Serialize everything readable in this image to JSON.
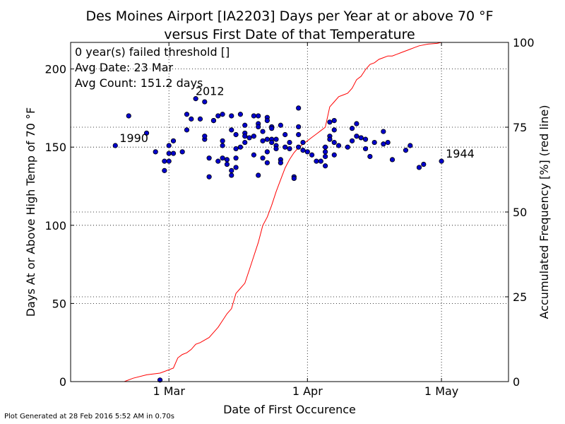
{
  "chart_data": {
    "type": "scatter",
    "title_line1": "Des Moines Airport [IA2203] Days per Year at or above 70 °F",
    "title_line2": "versus First Date of that Temperature",
    "xlabel": "Date of First Occurence",
    "ylabel": "Days At or Above High Temp of 70 °F",
    "y2label": "Accumulated Frequency [%] (red line)",
    "x_axis": {
      "unit": "day of year",
      "range": [
        38,
        136
      ],
      "ticks": [
        {
          "value": 60,
          "label": "1 Mar"
        },
        {
          "value": 91,
          "label": "1 Apr"
        },
        {
          "value": 121,
          "label": "1 May"
        }
      ]
    },
    "ylim": [
      0,
      217
    ],
    "yticks": [
      0,
      50,
      100,
      150,
      200
    ],
    "y2lim": [
      0,
      100
    ],
    "y2ticks": [
      0,
      25,
      50,
      75,
      100
    ],
    "grid": true,
    "annotation_box": [
      "0 year(s) failed threshold []",
      "Avg Date: 23 Mar",
      "Avg Count: 151.2 days"
    ],
    "year_labels": [
      {
        "label": "1990",
        "x": 48,
        "y": 151
      },
      {
        "label": "2012",
        "x": 65,
        "y": 181
      },
      {
        "label": "1944",
        "x": 121,
        "y": 141
      }
    ],
    "series": [
      {
        "kind": "points",
        "color": "#0000cc",
        "points": [
          [
            48,
            151
          ],
          [
            51,
            170
          ],
          [
            55,
            159
          ],
          [
            57,
            147
          ],
          [
            58,
            1
          ],
          [
            59,
            141
          ],
          [
            59,
            135
          ],
          [
            60,
            141
          ],
          [
            60,
            151
          ],
          [
            60,
            146
          ],
          [
            61,
            146
          ],
          [
            61,
            154
          ],
          [
            63,
            147
          ],
          [
            64,
            171
          ],
          [
            64,
            161
          ],
          [
            65,
            168
          ],
          [
            66,
            181
          ],
          [
            67,
            168
          ],
          [
            68,
            155
          ],
          [
            68,
            179
          ],
          [
            68,
            157
          ],
          [
            69,
            143
          ],
          [
            69,
            131
          ],
          [
            70,
            167
          ],
          [
            70,
            167
          ],
          [
            71,
            170
          ],
          [
            72,
            171
          ],
          [
            72,
            154
          ],
          [
            72,
            151
          ],
          [
            72,
            143
          ],
          [
            71,
            141
          ],
          [
            73,
            142
          ],
          [
            73,
            139
          ],
          [
            74,
            170
          ],
          [
            74,
            161
          ],
          [
            74,
            135
          ],
          [
            74,
            132
          ],
          [
            75,
            158
          ],
          [
            75,
            149
          ],
          [
            75,
            143
          ],
          [
            75,
            137
          ],
          [
            76,
            171
          ],
          [
            76,
            150
          ],
          [
            77,
            164
          ],
          [
            77,
            159
          ],
          [
            77,
            157
          ],
          [
            77,
            153
          ],
          [
            78,
            156
          ],
          [
            79,
            170
          ],
          [
            79,
            145
          ],
          [
            79,
            157
          ],
          [
            80,
            170
          ],
          [
            80,
            165
          ],
          [
            80,
            163
          ],
          [
            80,
            132
          ],
          [
            81,
            160
          ],
          [
            81,
            154
          ],
          [
            81,
            143
          ],
          [
            82,
            169
          ],
          [
            82,
            167
          ],
          [
            82,
            155
          ],
          [
            82,
            147
          ],
          [
            82,
            140
          ],
          [
            83,
            163
          ],
          [
            83,
            162
          ],
          [
            83,
            155
          ],
          [
            83,
            153
          ],
          [
            84,
            155
          ],
          [
            84,
            151
          ],
          [
            84,
            149
          ],
          [
            85,
            142
          ],
          [
            85,
            140
          ],
          [
            85,
            164
          ],
          [
            86,
            158
          ],
          [
            86,
            150
          ],
          [
            87,
            153
          ],
          [
            87,
            149
          ],
          [
            88,
            131
          ],
          [
            88,
            130
          ],
          [
            89,
            175
          ],
          [
            89,
            163
          ],
          [
            89,
            158
          ],
          [
            89,
            150
          ],
          [
            90,
            148
          ],
          [
            90,
            153
          ],
          [
            91,
            147
          ],
          [
            92,
            145
          ],
          [
            93,
            141
          ],
          [
            94,
            141
          ],
          [
            95,
            150
          ],
          [
            95,
            147
          ],
          [
            95,
            144
          ],
          [
            95,
            138
          ],
          [
            96,
            166
          ],
          [
            96,
            157
          ],
          [
            96,
            155
          ],
          [
            97,
            167
          ],
          [
            97,
            161
          ],
          [
            97,
            153
          ],
          [
            97,
            145
          ],
          [
            98,
            151
          ],
          [
            100,
            150
          ],
          [
            101,
            162
          ],
          [
            101,
            154
          ],
          [
            102,
            165
          ],
          [
            102,
            157
          ],
          [
            103,
            156
          ],
          [
            104,
            155
          ],
          [
            104,
            149
          ],
          [
            105,
            144
          ],
          [
            106,
            153
          ],
          [
            108,
            160
          ],
          [
            108,
            152
          ],
          [
            109,
            153
          ],
          [
            110,
            142
          ],
          [
            113,
            148
          ],
          [
            114,
            151
          ],
          [
            116,
            137
          ],
          [
            117,
            139
          ],
          [
            121,
            141
          ]
        ]
      },
      {
        "kind": "line",
        "color": "#ff0000",
        "points": [
          [
            50,
            0
          ],
          [
            52,
            1
          ],
          [
            55,
            2
          ],
          [
            58,
            2.5
          ],
          [
            59,
            3
          ],
          [
            61,
            4
          ],
          [
            62,
            7
          ],
          [
            63,
            8
          ],
          [
            64,
            8.5
          ],
          [
            65,
            9.5
          ],
          [
            66,
            11
          ],
          [
            67,
            11.5
          ],
          [
            69,
            13
          ],
          [
            70,
            14.5
          ],
          [
            71,
            16
          ],
          [
            72,
            18
          ],
          [
            73,
            20
          ],
          [
            74,
            21.5
          ],
          [
            75,
            26
          ],
          [
            76,
            27.5
          ],
          [
            77,
            29
          ],
          [
            78,
            33
          ],
          [
            79,
            37
          ],
          [
            80,
            41
          ],
          [
            81,
            46
          ],
          [
            82,
            48.5
          ],
          [
            83,
            52
          ],
          [
            84,
            56
          ],
          [
            85,
            59.5
          ],
          [
            86,
            63
          ],
          [
            87,
            65.5
          ],
          [
            88,
            67.5
          ],
          [
            89,
            69
          ],
          [
            90,
            70
          ],
          [
            91,
            71
          ],
          [
            92,
            72
          ],
          [
            93,
            73
          ],
          [
            94,
            74
          ],
          [
            95,
            75
          ],
          [
            96,
            81
          ],
          [
            97,
            82.5
          ],
          [
            98,
            84
          ],
          [
            99,
            84.5
          ],
          [
            100,
            85
          ],
          [
            101,
            86.5
          ],
          [
            102,
            89
          ],
          [
            103,
            90
          ],
          [
            104,
            92
          ],
          [
            105,
            93.5
          ],
          [
            106,
            94
          ],
          [
            107,
            95
          ],
          [
            108,
            95.5
          ],
          [
            109,
            96
          ],
          [
            110,
            96
          ],
          [
            111,
            96.5
          ],
          [
            112,
            97
          ],
          [
            113,
            97.5
          ],
          [
            114,
            98
          ],
          [
            115,
            98.5
          ],
          [
            116,
            99
          ],
          [
            118,
            99.5
          ],
          [
            120,
            99.7
          ],
          [
            121,
            100
          ]
        ]
      }
    ]
  },
  "footer": "Plot Generated at 28 Feb 2016 5:52 AM in 0.70s"
}
